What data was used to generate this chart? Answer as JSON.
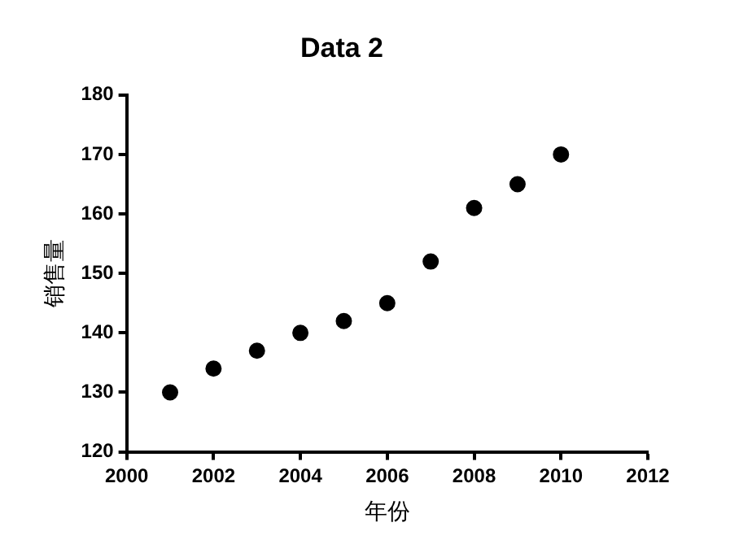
{
  "chart_data": {
    "type": "scatter",
    "title": "Data 2",
    "xlabel": "年份",
    "ylabel": "销售量",
    "x": [
      2001,
      2002,
      2003,
      2004,
      2005,
      2006,
      2007,
      2008,
      2009,
      2010
    ],
    "series": [
      {
        "color": "#000000",
        "values": [
          130,
          134,
          137,
          140,
          142,
          145,
          152,
          161,
          165,
          170
        ]
      }
    ],
    "xlim": [
      2000,
      2012
    ],
    "xticks": [
      2000,
      2002,
      2004,
      2006,
      2008,
      2010,
      2012
    ],
    "ylim": [
      120,
      180
    ],
    "yticks": [
      120,
      130,
      140,
      150,
      160,
      170,
      180
    ],
    "grid": false,
    "legend": false,
    "marker": "circle"
  }
}
